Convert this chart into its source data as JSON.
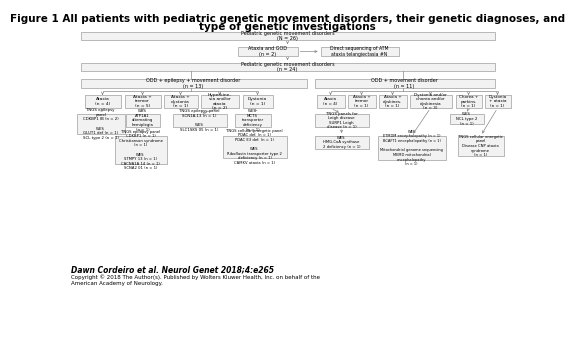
{
  "title_line1": "Figure 1 All patients with pediatric genetic movement disorders, their genetic diagnoses, and",
  "title_line2": "type of genetic investigations",
  "title_fontsize": 7.5,
  "footer": "Dawn Cordeiro et al. Neurol Genet 2018;4:e265",
  "copyright": "Copyright © 2018 The Author(s). Published by Wolters Kluwer Health, Inc. on behalf of the\nAmerican Academy of Neurology.",
  "box_facecolor": "#f2f2f2",
  "box_edgecolor": "#888888",
  "text_fontsize": 3.5,
  "small_fontsize": 3.0,
  "bg_color": "#ffffff"
}
